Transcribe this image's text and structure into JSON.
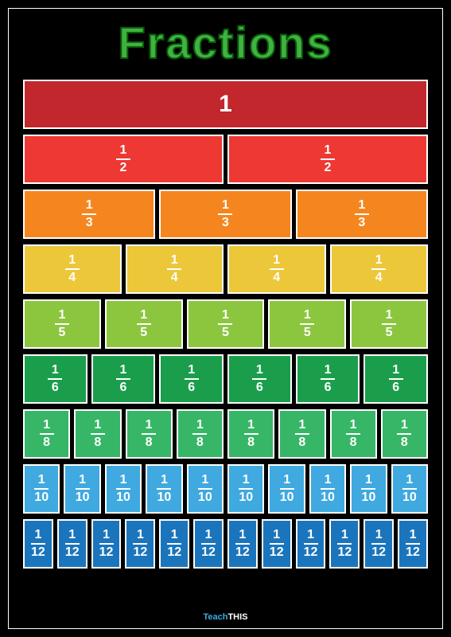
{
  "title": "Fractions",
  "footer_brand_1": "Teach",
  "footer_brand_2": "THIS",
  "background_color": "#000000",
  "border_color": "#ffffff",
  "text_color": "#ffffff",
  "title_color": "#3fb23f",
  "title_stroke": "#0a5a0a",
  "rows": [
    {
      "denominator": 1,
      "count": 1,
      "color": "#c1272d",
      "label_whole": "1"
    },
    {
      "denominator": 2,
      "count": 2,
      "color": "#ed3833"
    },
    {
      "denominator": 3,
      "count": 3,
      "color": "#f5861f"
    },
    {
      "denominator": 4,
      "count": 4,
      "color": "#ecc73a"
    },
    {
      "denominator": 5,
      "count": 5,
      "color": "#8cc63f"
    },
    {
      "denominator": 6,
      "count": 6,
      "color": "#1a9e4b"
    },
    {
      "denominator": 8,
      "count": 8,
      "color": "#37b667"
    },
    {
      "denominator": 10,
      "count": 10,
      "color": "#3fa9e0"
    },
    {
      "denominator": 12,
      "count": 12,
      "color": "#1b75bc"
    }
  ]
}
